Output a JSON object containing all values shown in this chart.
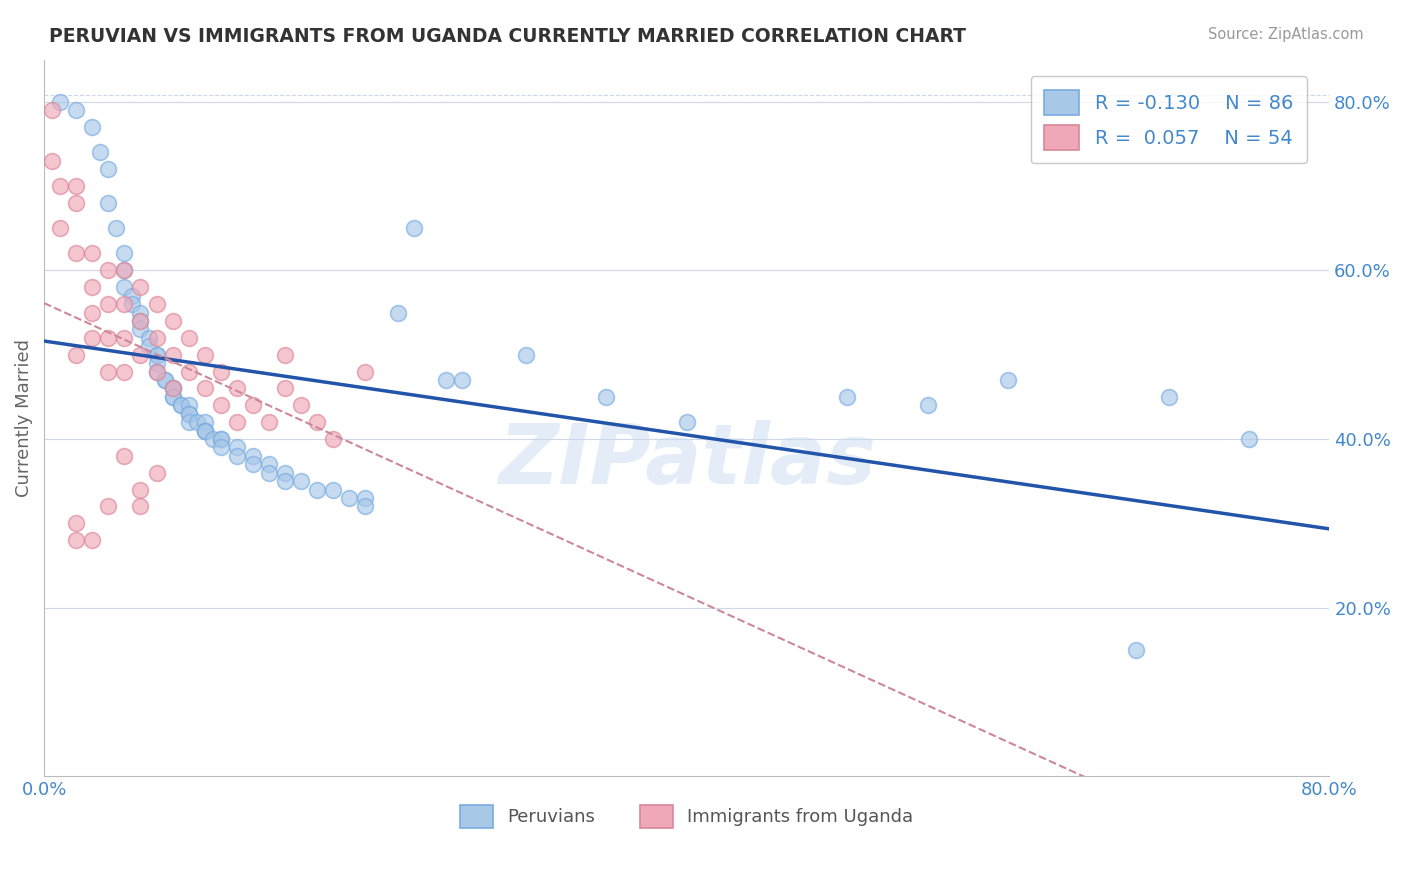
{
  "title": "PERUVIAN VS IMMIGRANTS FROM UGANDA CURRENTLY MARRIED CORRELATION CHART",
  "source_text": "Source: ZipAtlas.com",
  "ylabel": "Currently Married",
  "xmin": 0.0,
  "xmax": 0.8,
  "ymin": 0.0,
  "ymax": 0.85,
  "blue_label": "Peruvians",
  "pink_label": "Immigrants from Uganda",
  "blue_R": -0.13,
  "blue_N": 86,
  "pink_R": 0.057,
  "pink_N": 54,
  "blue_color": "#a8c8e8",
  "pink_color": "#f0a8b8",
  "blue_edge_color": "#7aabe0",
  "pink_edge_color": "#d88898",
  "blue_line_color": "#2255aa",
  "pink_line_color": "#cc8899",
  "watermark": "ZIPatlas",
  "blue_scatter_x": [
    0.01,
    0.02,
    0.03,
    0.035,
    0.04,
    0.04,
    0.045,
    0.05,
    0.05,
    0.05,
    0.055,
    0.055,
    0.06,
    0.06,
    0.06,
    0.065,
    0.065,
    0.07,
    0.07,
    0.07,
    0.07,
    0.075,
    0.075,
    0.08,
    0.08,
    0.08,
    0.08,
    0.085,
    0.085,
    0.09,
    0.09,
    0.09,
    0.09,
    0.095,
    0.1,
    0.1,
    0.1,
    0.1,
    0.105,
    0.11,
    0.11,
    0.11,
    0.12,
    0.12,
    0.13,
    0.13,
    0.14,
    0.14,
    0.15,
    0.15,
    0.16,
    0.17,
    0.18,
    0.19,
    0.2,
    0.2,
    0.22,
    0.23,
    0.25,
    0.26,
    0.3,
    0.35,
    0.4,
    0.5,
    0.55,
    0.6,
    0.68,
    0.7,
    0.75
  ],
  "blue_scatter_y": [
    0.8,
    0.79,
    0.77,
    0.74,
    0.72,
    0.68,
    0.65,
    0.62,
    0.6,
    0.58,
    0.57,
    0.56,
    0.55,
    0.54,
    0.53,
    0.52,
    0.51,
    0.5,
    0.5,
    0.49,
    0.48,
    0.47,
    0.47,
    0.46,
    0.46,
    0.45,
    0.45,
    0.44,
    0.44,
    0.44,
    0.43,
    0.43,
    0.42,
    0.42,
    0.42,
    0.41,
    0.41,
    0.41,
    0.4,
    0.4,
    0.4,
    0.39,
    0.39,
    0.38,
    0.38,
    0.37,
    0.37,
    0.36,
    0.36,
    0.35,
    0.35,
    0.34,
    0.34,
    0.33,
    0.33,
    0.32,
    0.55,
    0.65,
    0.47,
    0.47,
    0.5,
    0.45,
    0.42,
    0.45,
    0.44,
    0.47,
    0.15,
    0.45,
    0.4
  ],
  "pink_scatter_x": [
    0.005,
    0.005,
    0.01,
    0.01,
    0.02,
    0.02,
    0.02,
    0.02,
    0.03,
    0.03,
    0.03,
    0.03,
    0.04,
    0.04,
    0.04,
    0.04,
    0.05,
    0.05,
    0.05,
    0.05,
    0.06,
    0.06,
    0.06,
    0.07,
    0.07,
    0.07,
    0.08,
    0.08,
    0.08,
    0.09,
    0.09,
    0.1,
    0.1,
    0.11,
    0.11,
    0.12,
    0.12,
    0.13,
    0.14,
    0.15,
    0.15,
    0.16,
    0.17,
    0.18,
    0.2,
    0.02,
    0.02,
    0.03,
    0.04,
    0.05,
    0.06,
    0.06,
    0.07
  ],
  "pink_scatter_y": [
    0.79,
    0.73,
    0.7,
    0.65,
    0.7,
    0.68,
    0.62,
    0.5,
    0.62,
    0.58,
    0.55,
    0.52,
    0.6,
    0.56,
    0.52,
    0.48,
    0.6,
    0.56,
    0.52,
    0.48,
    0.58,
    0.54,
    0.5,
    0.56,
    0.52,
    0.48,
    0.54,
    0.5,
    0.46,
    0.52,
    0.48,
    0.5,
    0.46,
    0.48,
    0.44,
    0.46,
    0.42,
    0.44,
    0.42,
    0.5,
    0.46,
    0.44,
    0.42,
    0.4,
    0.48,
    0.3,
    0.28,
    0.28,
    0.32,
    0.38,
    0.34,
    0.32,
    0.36
  ],
  "ytick_positions": [
    0.2,
    0.4,
    0.6,
    0.8
  ],
  "ytick_labels": [
    "20.0%",
    "40.0%",
    "60.0%",
    "80.0%"
  ],
  "xtick_positions": [
    0.0,
    0.8
  ],
  "xtick_labels": [
    "0.0%",
    "80.0%"
  ],
  "grid_color": "#d0d8e8",
  "background_color": "#ffffff",
  "tick_color": "#4488cc"
}
